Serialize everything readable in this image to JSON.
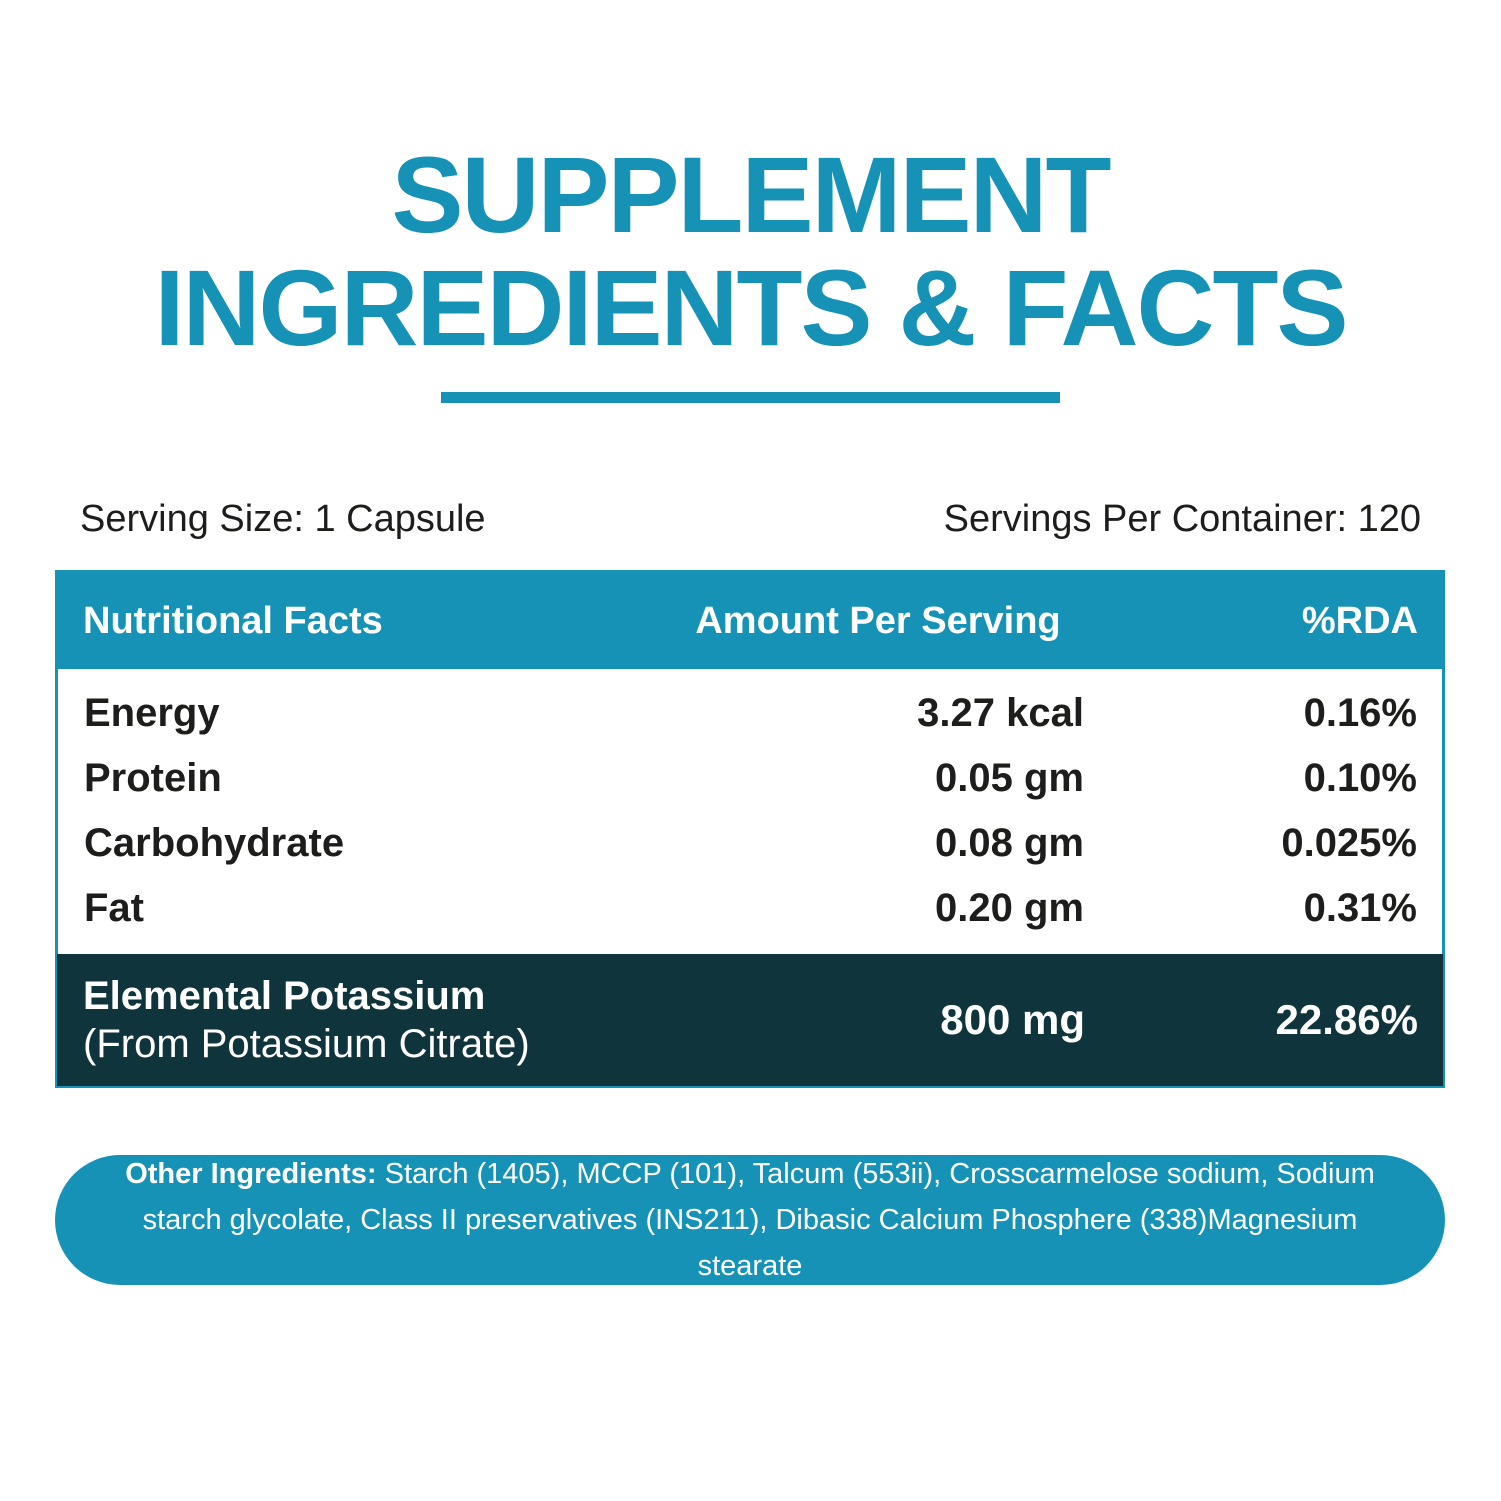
{
  "title": {
    "line1": "SUPPLEMENT",
    "line2": "INGREDIENTS & FACTS"
  },
  "serving": {
    "size_label": "Serving Size: 1 Capsule",
    "per_container_label": "Servings Per Container: 120"
  },
  "table": {
    "headers": {
      "name": "Nutritional Facts",
      "amount": "Amount Per Serving",
      "rda": "%RDA"
    },
    "rows": [
      {
        "name": "Energy",
        "amount": "3.27 kcal",
        "rda": "0.16%"
      },
      {
        "name": "Protein",
        "amount": "0.05 gm",
        "rda": "0.10%"
      },
      {
        "name": "Carbohydrate",
        "amount": "0.08 gm",
        "rda": "0.025%"
      },
      {
        "name": "Fat",
        "amount": "0.20 gm",
        "rda": "0.31%"
      }
    ],
    "highlight_row": {
      "name": "Elemental Potassium",
      "sub_name": "(From Potassium Citrate)",
      "amount": "800 mg",
      "rda": "22.86%"
    }
  },
  "other_ingredients": {
    "label": "Other Ingredients:",
    "text": " Starch (1405), MCCP (101), Talcum (553ii), Crosscarmelose sodium, Sodium starch glycolate, Class II preservatives (INS211), Dibasic Calcium Phosphere (338)Magnesium stearate"
  },
  "colors": {
    "accent_teal": "#1792b7",
    "dark_teal": "#0f343c",
    "text_dark": "#1d1d1b",
    "background": "#ffffff"
  }
}
